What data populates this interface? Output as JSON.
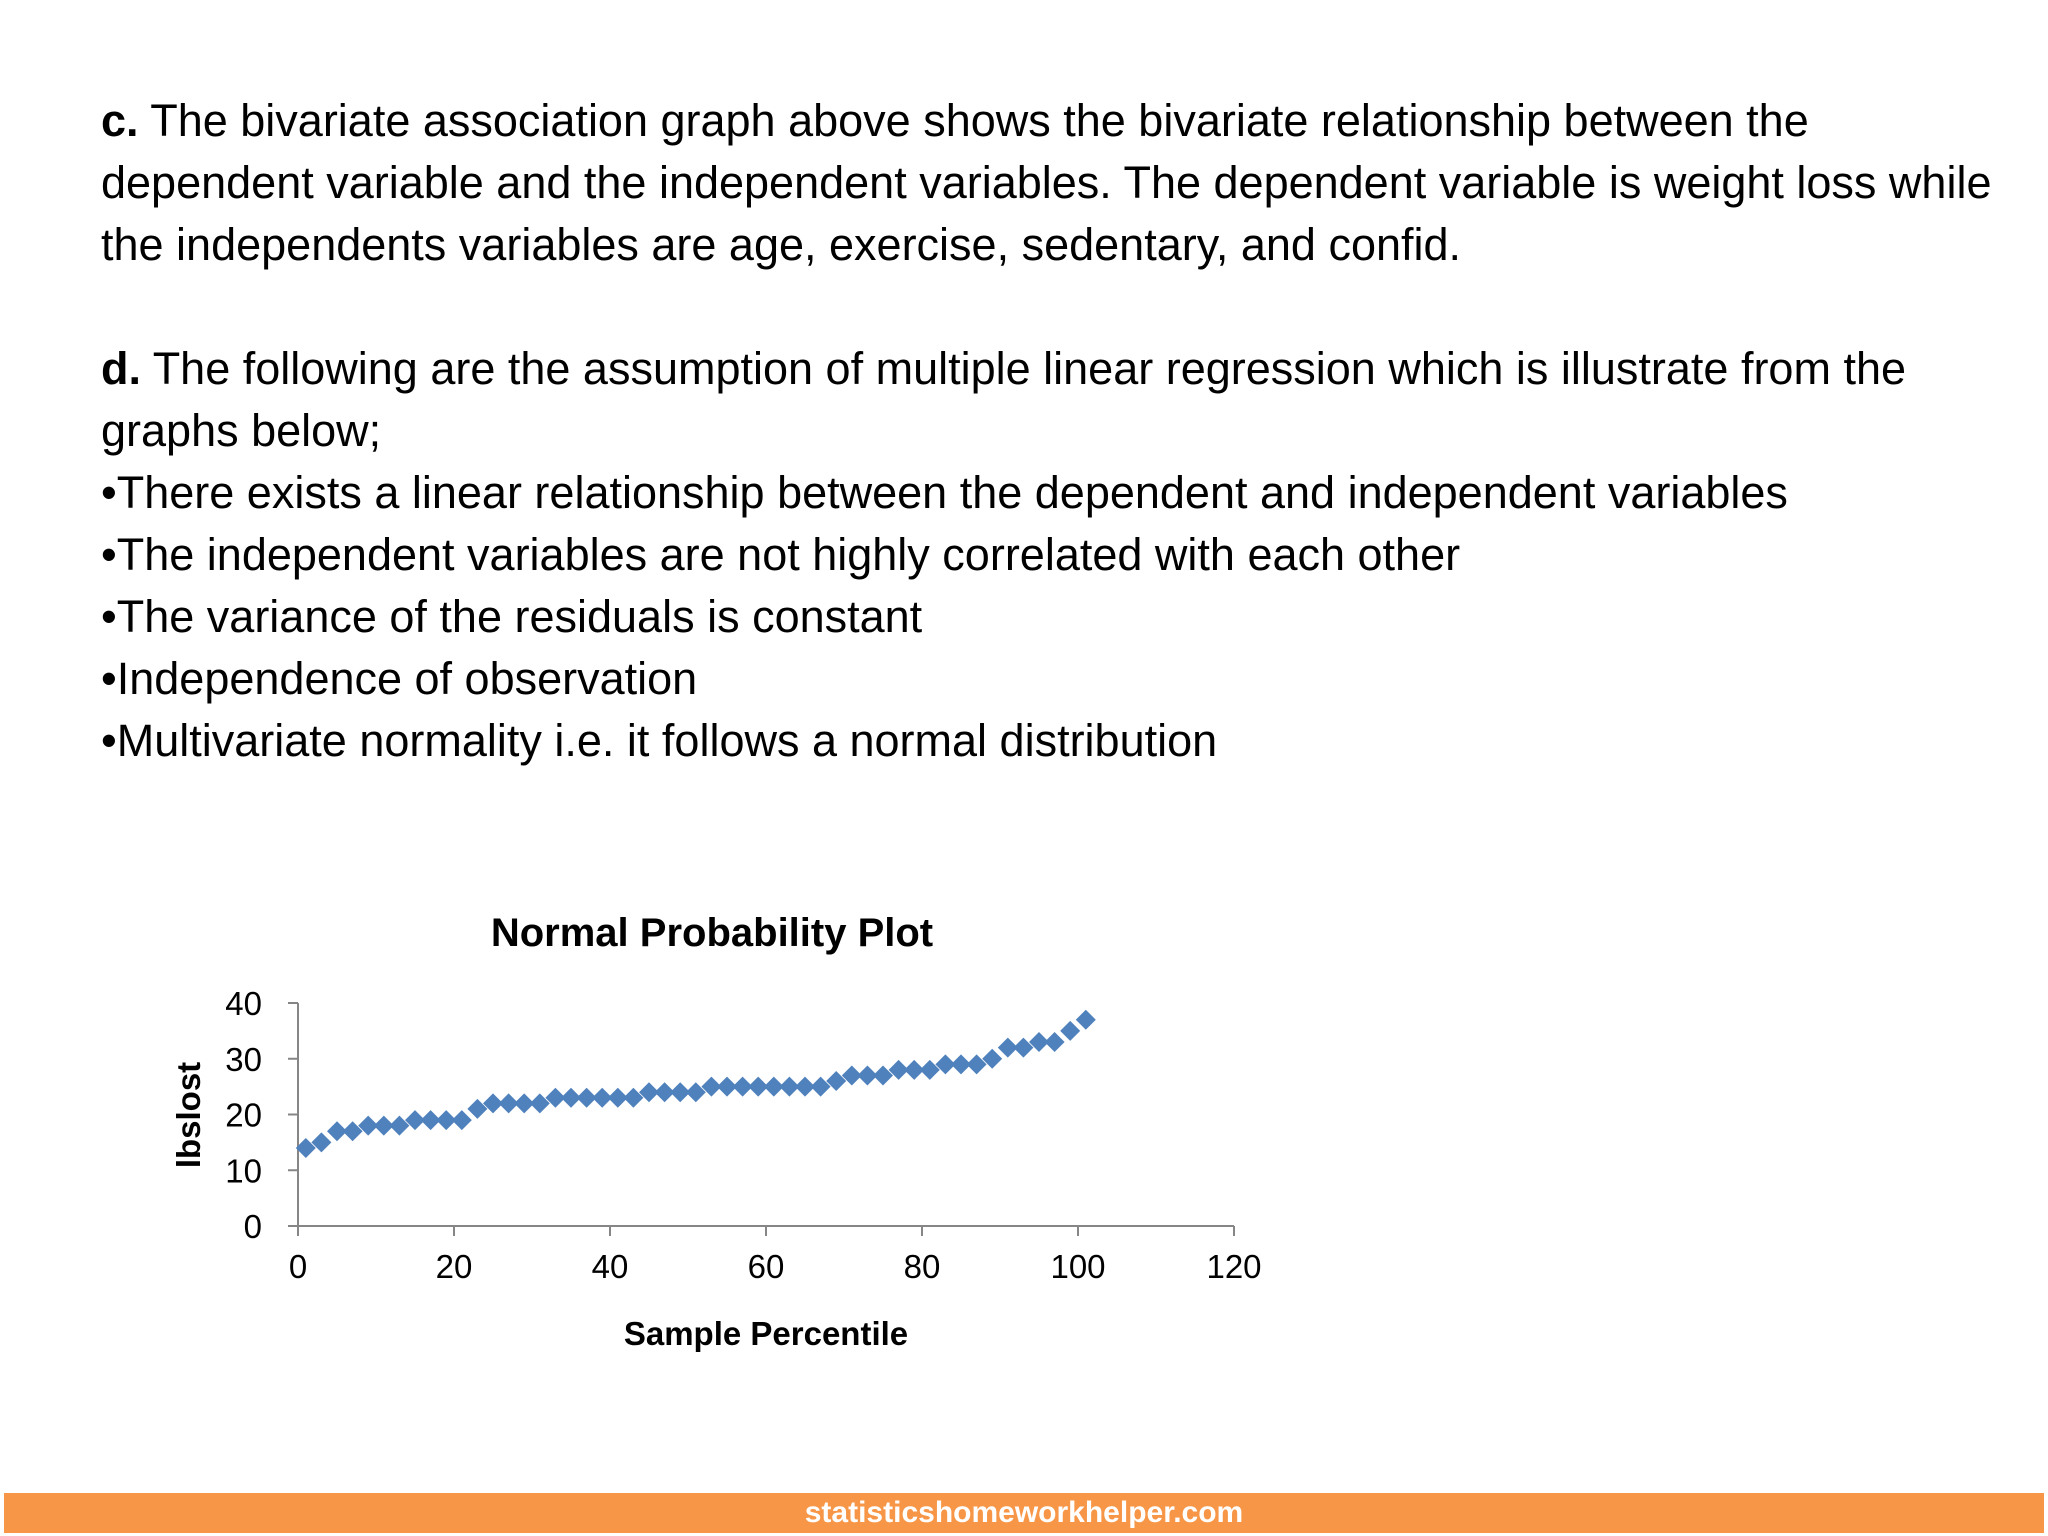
{
  "section_c": {
    "label": "c.",
    "text": " The bivariate association graph above shows the bivariate relationship between the dependent variable and the independent variables. The dependent variable is weight loss while the independents variables are age, exercise, sedentary, and confid."
  },
  "section_d": {
    "label": "d.",
    "text": " The following are the assumption of multiple linear regression which is illustrate from the graphs below;",
    "bullets": [
      "•There exists a linear relationship between the dependent and independent variables",
      "•The independent variables are not highly correlated with each other",
      "•The variance of the residuals is constant",
      "•Independence of observation",
      "•Multivariate normality i.e. it follows a normal distribution"
    ]
  },
  "chart_data": {
    "type": "scatter",
    "title": "Normal Probability Plot",
    "xlabel": "Sample Percentile",
    "ylabel": "lbslost",
    "xlim": [
      0,
      120
    ],
    "ylim": [
      0,
      40
    ],
    "x_ticks": [
      "0",
      "20",
      "40",
      "60",
      "80",
      "100",
      "120"
    ],
    "y_ticks": [
      "0",
      "10",
      "20",
      "30",
      "40"
    ],
    "grid": false,
    "marker": "diamond",
    "color": "#4F81BD",
    "points": [
      [
        1,
        14
      ],
      [
        3,
        15
      ],
      [
        5,
        17
      ],
      [
        7,
        17
      ],
      [
        9,
        18
      ],
      [
        11,
        18
      ],
      [
        13,
        18
      ],
      [
        15,
        19
      ],
      [
        17,
        19
      ],
      [
        19,
        19
      ],
      [
        21,
        19
      ],
      [
        23,
        21
      ],
      [
        25,
        22
      ],
      [
        27,
        22
      ],
      [
        29,
        22
      ],
      [
        31,
        22
      ],
      [
        33,
        23
      ],
      [
        35,
        23
      ],
      [
        37,
        23
      ],
      [
        39,
        23
      ],
      [
        41,
        23
      ],
      [
        43,
        23
      ],
      [
        45,
        24
      ],
      [
        47,
        24
      ],
      [
        49,
        24
      ],
      [
        51,
        24
      ],
      [
        53,
        25
      ],
      [
        55,
        25
      ],
      [
        57,
        25
      ],
      [
        59,
        25
      ],
      [
        61,
        25
      ],
      [
        63,
        25
      ],
      [
        65,
        25
      ],
      [
        67,
        25
      ],
      [
        69,
        26
      ],
      [
        71,
        27
      ],
      [
        73,
        27
      ],
      [
        75,
        27
      ],
      [
        77,
        28
      ],
      [
        79,
        28
      ],
      [
        81,
        28
      ],
      [
        83,
        29
      ],
      [
        85,
        29
      ],
      [
        87,
        29
      ],
      [
        89,
        30
      ],
      [
        91,
        32
      ],
      [
        93,
        32
      ],
      [
        95,
        33
      ],
      [
        97,
        33
      ],
      [
        99,
        35
      ],
      [
        101,
        37
      ]
    ]
  },
  "footer": {
    "text": "statisticshomeworkhelper.com",
    "color": "#F79646"
  }
}
